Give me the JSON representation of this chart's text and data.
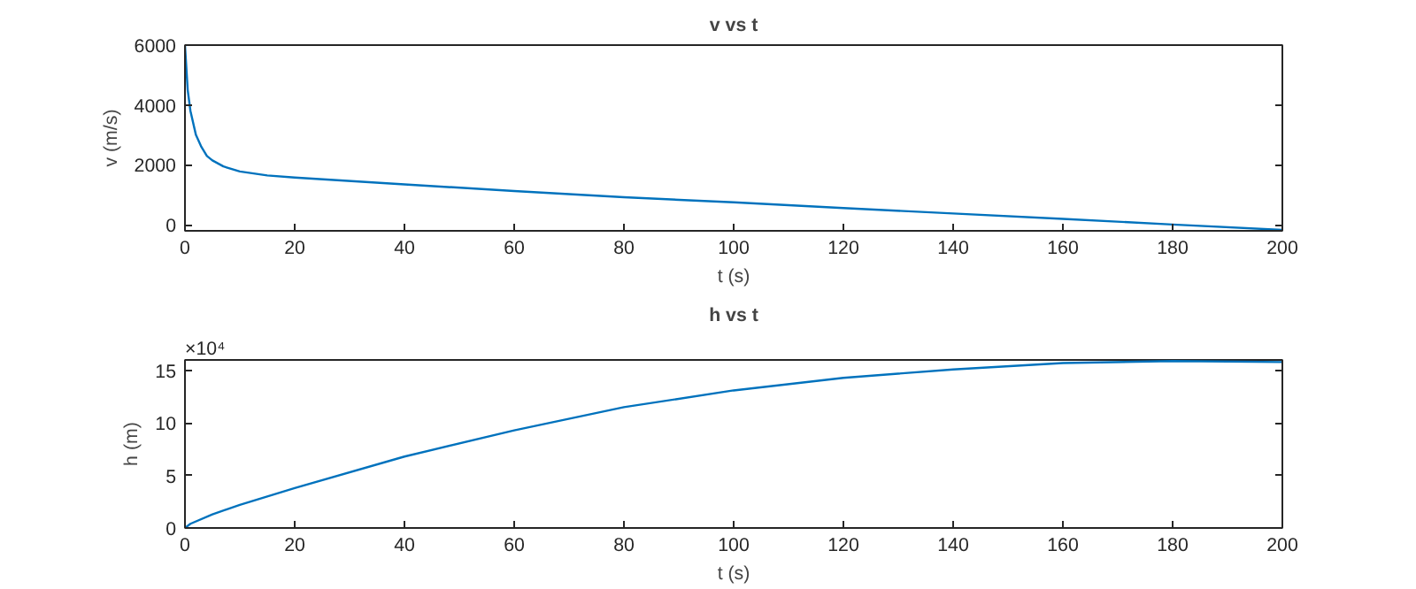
{
  "chart_data": [
    {
      "type": "line",
      "title": "v vs t",
      "xlabel": "t (s)",
      "ylabel": "v (m/s)",
      "x": [
        0,
        0.5,
        1,
        2,
        3,
        4,
        5,
        7,
        10,
        15,
        20,
        40,
        60,
        80,
        100,
        120,
        140,
        160,
        180,
        200
      ],
      "series": [
        {
          "color": "#0072bd",
          "values": [
            6000,
            4500,
            3800,
            3000,
            2600,
            2300,
            2150,
            1950,
            1780,
            1650,
            1580,
            1350,
            1130,
            920,
            750,
            560,
            380,
            200,
            10,
            -170
          ]
        }
      ],
      "xlim": [
        0,
        200
      ],
      "ylim": [
        -200,
        6000
      ],
      "xticks": [
        0,
        20,
        40,
        60,
        80,
        100,
        120,
        140,
        160,
        180,
        200
      ],
      "yticks": [
        0,
        2000,
        4000,
        6000
      ]
    },
    {
      "type": "line",
      "title": "h vs t",
      "xlabel": "t (s)",
      "ylabel": "h (m)",
      "annotations": [
        "×10⁴"
      ],
      "x": [
        0,
        1,
        5,
        10,
        20,
        40,
        60,
        80,
        100,
        120,
        140,
        160,
        180,
        200
      ],
      "series": [
        {
          "color": "#0072bd",
          "values": [
            0,
            0.4,
            1.3,
            2.2,
            3.8,
            6.8,
            9.3,
            11.5,
            13.1,
            14.3,
            15.1,
            15.7,
            15.9,
            15.8
          ]
        }
      ],
      "xlim": [
        0,
        200
      ],
      "ylim": [
        0,
        16
      ],
      "xticks": [
        0,
        20,
        40,
        60,
        80,
        100,
        120,
        140,
        160,
        180,
        200
      ],
      "yticks": [
        0,
        5,
        10,
        15
      ]
    }
  ]
}
